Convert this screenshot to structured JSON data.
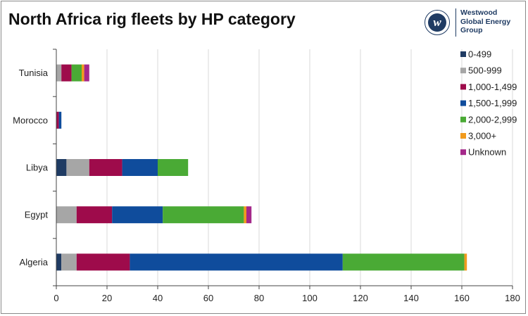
{
  "chart_data": {
    "type": "bar",
    "orientation": "horizontal",
    "stacked": true,
    "title": "North Africa rig fleets by HP category",
    "xlabel": "",
    "ylabel": "",
    "xlim": [
      0,
      180
    ],
    "xticks": [
      "0",
      "20",
      "40",
      "60",
      "80",
      "100",
      "120",
      "140",
      "160",
      "180"
    ],
    "grid": true,
    "legend_position": "right",
    "categories": [
      "Tunisia",
      "Morocco",
      "Libya",
      "Egypt",
      "Algeria"
    ],
    "series": [
      {
        "name": "0-499",
        "color": "#1f3b63",
        "values": [
          0,
          0,
          4,
          0,
          2
        ]
      },
      {
        "name": "500-999",
        "color": "#a6a6a6",
        "values": [
          2,
          0,
          9,
          8,
          6
        ]
      },
      {
        "name": "1,000-1,499",
        "color": "#9e0b4b",
        "values": [
          4,
          1,
          13,
          14,
          21
        ]
      },
      {
        "name": "1,500-1,999",
        "color": "#0f4c9c",
        "values": [
          0,
          1,
          14,
          20,
          84
        ]
      },
      {
        "name": "2,000-2,999",
        "color": "#4aaa35",
        "values": [
          4,
          0,
          12,
          32,
          48
        ]
      },
      {
        "name": "3,000+",
        "color": "#f19a1d",
        "values": [
          1,
          0,
          0,
          1,
          1
        ]
      },
      {
        "name": "Unknown",
        "color": "#a4288a",
        "values": [
          2,
          0,
          0,
          2,
          0
        ]
      }
    ]
  },
  "brand": {
    "logo_letter": "w",
    "lines": [
      "Westwood",
      "Global Energy",
      "Group"
    ]
  }
}
